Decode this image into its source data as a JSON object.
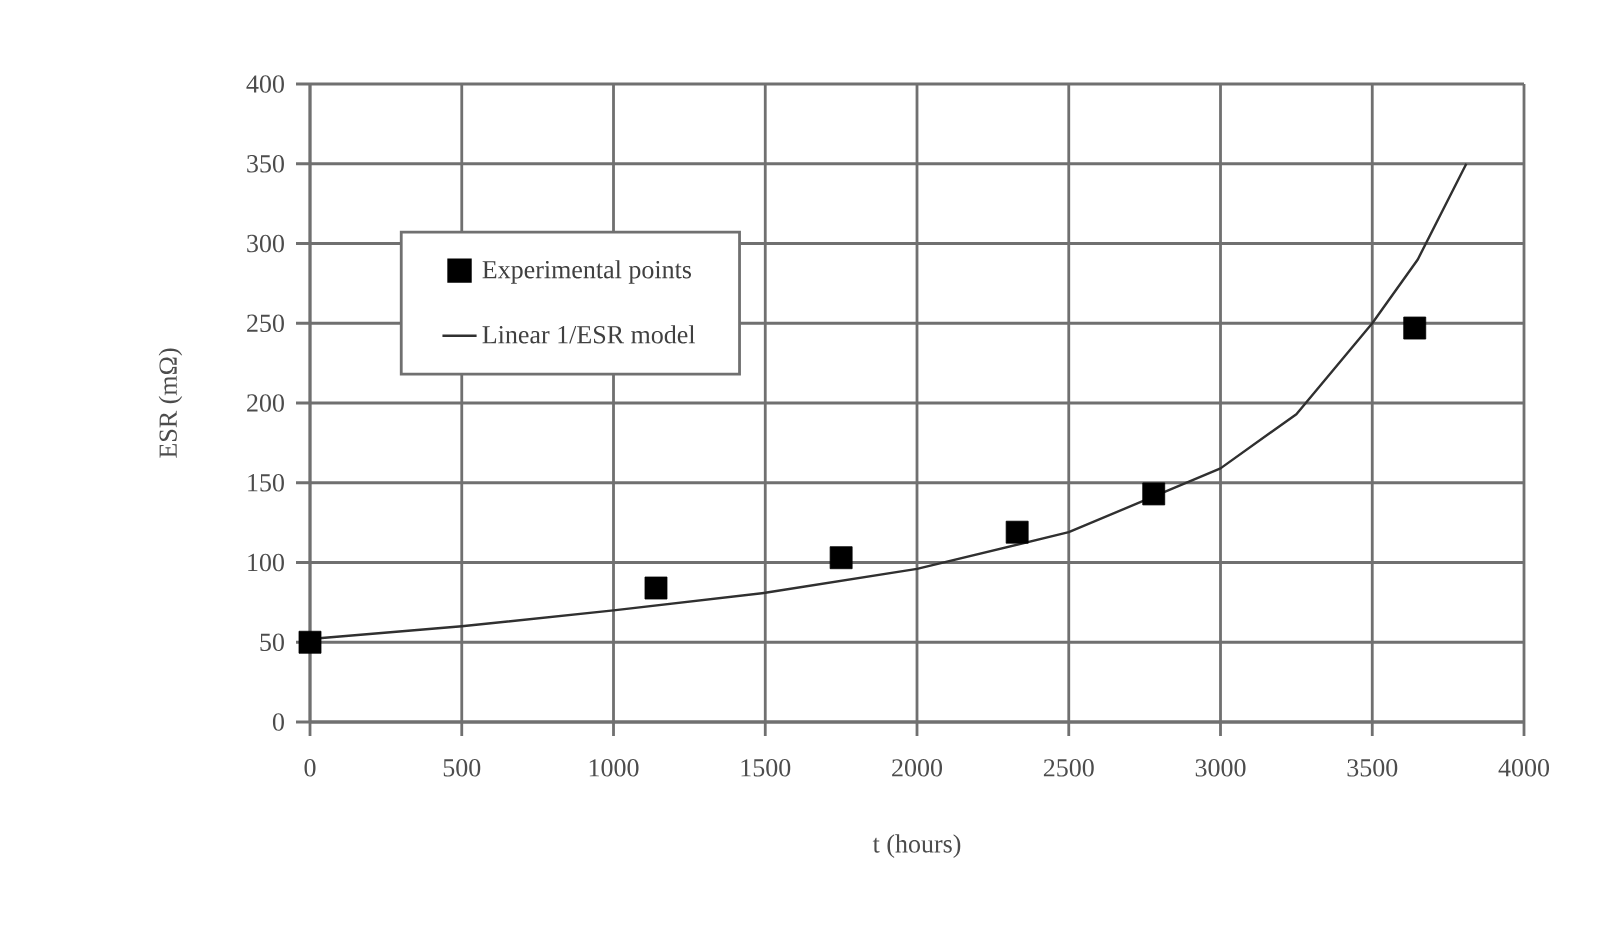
{
  "chart_data": {
    "type": "scatter",
    "xlabel": "t (hours)",
    "ylabel": "ESR (mΩ)",
    "xlim": [
      0,
      4000
    ],
    "ylim": [
      0,
      400
    ],
    "xticks": [
      0,
      500,
      1000,
      1500,
      2000,
      2500,
      3000,
      3500,
      4000
    ],
    "yticks": [
      0,
      50,
      100,
      150,
      200,
      250,
      300,
      350,
      400
    ],
    "grid": true,
    "legend": "top left",
    "series": [
      {
        "name": "Experimental points",
        "marker": "square",
        "color": "#000000",
        "x": [
          0,
          1140,
          1750,
          2330,
          2780,
          3640
        ],
        "values": [
          50,
          84,
          103,
          119,
          143,
          247
        ]
      },
      {
        "name": "Linear 1/ESR model",
        "type": "line",
        "marker": "none",
        "color": "#303030",
        "x": [
          0,
          500,
          1000,
          1500,
          2000,
          2500,
          3000,
          3250,
          3500,
          3650,
          3810
        ],
        "values": [
          52,
          60,
          70,
          81,
          96,
          119,
          159,
          193,
          250,
          290,
          350
        ]
      }
    ]
  }
}
